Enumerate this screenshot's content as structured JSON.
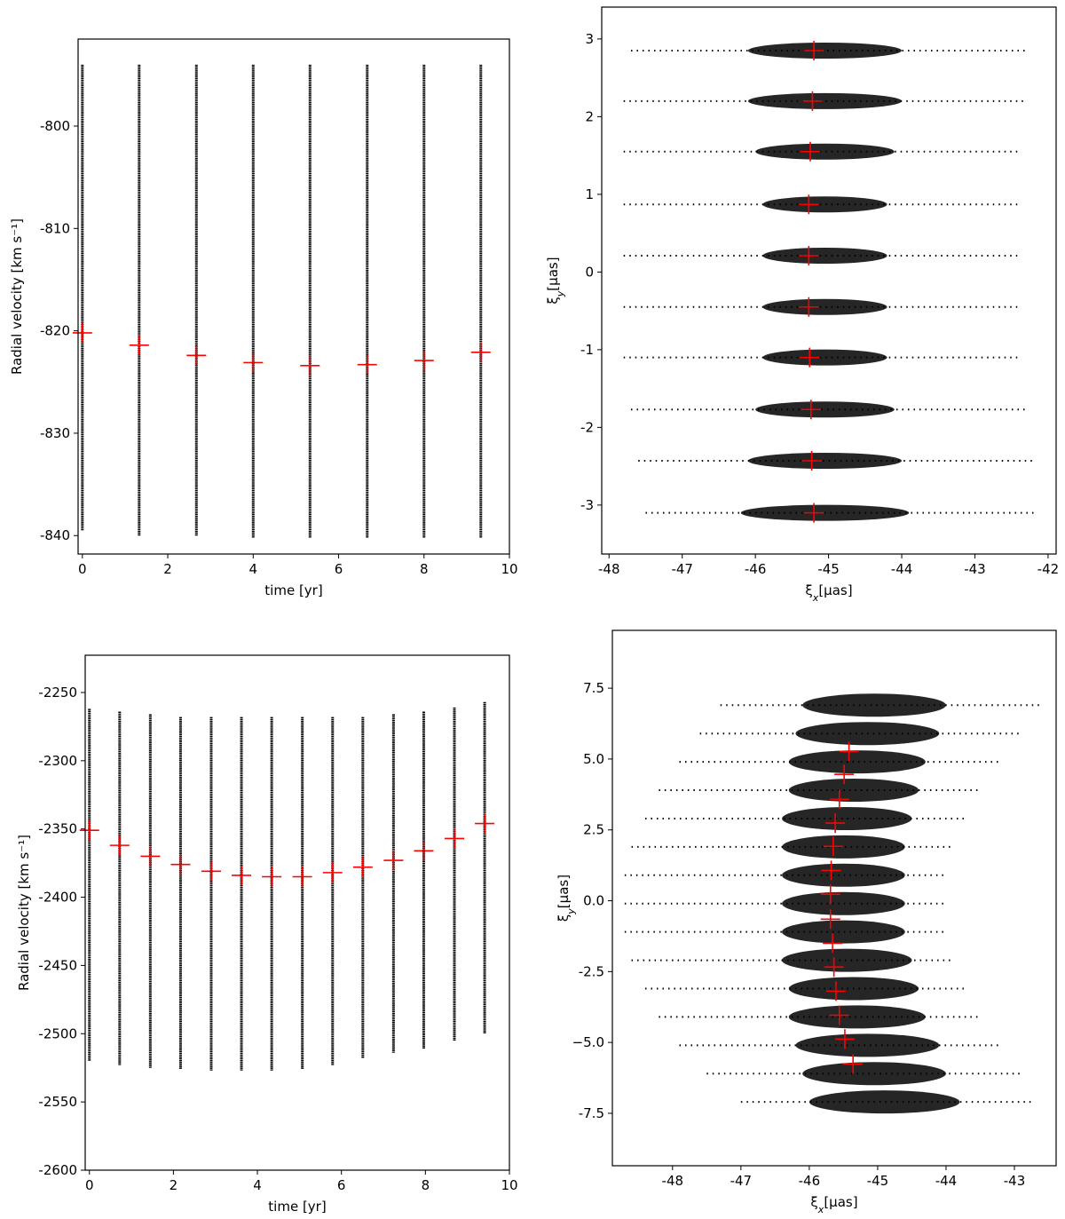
{
  "chart_data": [
    {
      "type": "scatter",
      "xlabel": "time [yr]",
      "ylabel": "Radial velocity [km s⁻¹]",
      "xlim": [
        -0.1,
        10
      ],
      "ylim": [
        -841.8,
        -791.5
      ],
      "xticks": [
        0,
        2,
        4,
        6,
        8,
        10
      ],
      "yticks": [
        -800,
        -810,
        -820,
        -830,
        -840
      ],
      "columns": {
        "color": "#000000",
        "x": [
          0,
          1.33,
          2.67,
          4.0,
          5.33,
          6.67,
          8.0,
          9.33
        ],
        "low": [
          -839.5,
          -840,
          -840,
          -840.2,
          -840.2,
          -840.2,
          -840.2,
          -840.2
        ],
        "high": [
          -794,
          -794,
          -794,
          -794,
          -794,
          -794,
          -794,
          -794
        ]
      },
      "points": {
        "color": "#ff0000",
        "x": [
          0,
          1.33,
          2.67,
          4.0,
          5.33,
          6.67,
          8.0,
          9.33
        ],
        "y": [
          -820.2,
          -821.4,
          -822.4,
          -823.1,
          -823.4,
          -823.3,
          -822.9,
          -822.1
        ]
      }
    },
    {
      "type": "bands",
      "xlabel": "ξx[μas]",
      "ylabel": "ξy[μas]",
      "xlim": [
        -48.1,
        -41.89
      ],
      "ylim": [
        -3.63,
        3.41
      ],
      "xticks": [
        -48,
        -47,
        -46,
        -45,
        -44,
        -43,
        -42
      ],
      "yticks": [
        3,
        2,
        1,
        0,
        -1,
        -2,
        -3
      ],
      "bands": {
        "color": "#000000",
        "y": [
          2.85,
          2.2,
          1.55,
          0.87,
          0.21,
          -0.45,
          -1.1,
          -1.77,
          -2.43,
          -3.1
        ],
        "core_low": [
          -46.1,
          -46.1,
          -46.0,
          -45.9,
          -45.9,
          -45.9,
          -45.9,
          -46.0,
          -46.1,
          -46.2
        ],
        "core_high": [
          -44.0,
          -44.0,
          -44.1,
          -44.2,
          -44.2,
          -44.2,
          -44.2,
          -44.1,
          -44.0,
          -43.9
        ],
        "spread_low": [
          -47.7,
          -47.8,
          -47.8,
          -47.8,
          -47.8,
          -47.8,
          -47.8,
          -47.7,
          -47.6,
          -47.5
        ],
        "spread_high": [
          -42.3,
          -42.3,
          -42.4,
          -42.4,
          -42.4,
          -42.4,
          -42.4,
          -42.3,
          -42.2,
          -42.2
        ]
      },
      "points": {
        "color": "#ff0000",
        "x": [
          -45.2,
          -45.22,
          -45.25,
          -45.27,
          -45.27,
          -45.27,
          -45.26,
          -45.24,
          -45.23,
          -45.2
        ],
        "y": [
          2.85,
          2.2,
          1.55,
          0.87,
          0.21,
          -0.45,
          -1.1,
          -1.77,
          -2.43,
          -3.1
        ]
      }
    },
    {
      "type": "scatter",
      "xlabel": "time [yr]",
      "ylabel": "Radial velocity [km s⁻¹]",
      "xlim": [
        -0.1,
        10
      ],
      "ylim": [
        -2600,
        -2222.7
      ],
      "xticks": [
        0,
        2,
        4,
        6,
        8,
        10
      ],
      "yticks": [
        -2250,
        -2300,
        -2350,
        -2400,
        -2450,
        -2500,
        -2550,
        -2600
      ],
      "columns": {
        "color": "#000000",
        "x": [
          0,
          0.72,
          1.45,
          2.17,
          2.9,
          3.62,
          4.34,
          5.07,
          5.79,
          6.51,
          7.24,
          7.96,
          8.69,
          9.41
        ],
        "low": [
          -2520,
          -2523,
          -2525,
          -2526,
          -2527,
          -2527,
          -2527,
          -2526,
          -2523,
          -2518,
          -2514,
          -2511,
          -2505,
          -2500
        ],
        "high": [
          -2262,
          -2264,
          -2266,
          -2268,
          -2268,
          -2268,
          -2268,
          -2268,
          -2268,
          -2268,
          -2266,
          -2264,
          -2261,
          -2257
        ]
      },
      "points": {
        "color": "#ff0000",
        "x": [
          0,
          0.72,
          1.45,
          2.17,
          2.9,
          3.62,
          4.34,
          5.07,
          5.79,
          6.51,
          7.24,
          7.96,
          8.69,
          9.41
        ],
        "y": [
          -2351,
          -2362,
          -2370,
          -2376,
          -2381,
          -2384,
          -2385,
          -2385,
          -2382,
          -2378,
          -2373,
          -2366,
          -2357,
          -2346
        ]
      }
    },
    {
      "type": "bands",
      "xlabel": "ξx[μas]",
      "ylabel": "ξy[μas]",
      "xlim": [
        -48.88,
        -42.39
      ],
      "ylim": [
        -9.35,
        9.54
      ],
      "xticks": [
        -48,
        -47,
        -46,
        -45,
        -44,
        -43
      ],
      "yticks": [
        7.5,
        {
          "value": 5,
          "label": "5.0"
        },
        2.5,
        {
          "value": 0,
          "label": "0.0"
        },
        -2.5,
        {
          "value": -5,
          "label": "−5.0"
        },
        -7.5
      ],
      "bands": {
        "color": "#000000",
        "y": [
          6.9,
          5.9,
          4.9,
          3.9,
          2.9,
          1.9,
          0.9,
          -0.1,
          -1.1,
          -2.1,
          -3.1,
          -4.1,
          -5.1,
          -6.1,
          -7.1
        ],
        "core_low": [
          -46.1,
          -46.2,
          -46.3,
          -46.3,
          -46.4,
          -46.4,
          -46.4,
          -46.4,
          -46.4,
          -46.4,
          -46.3,
          -46.3,
          -46.2,
          -46.1,
          -46.0
        ],
        "core_high": [
          -44.0,
          -44.1,
          -44.3,
          -44.4,
          -44.5,
          -44.6,
          -44.6,
          -44.6,
          -44.6,
          -44.5,
          -44.4,
          -44.3,
          -44.1,
          -44.0,
          -43.8
        ],
        "spread_low": [
          -47.3,
          -47.6,
          -47.9,
          -48.2,
          -48.4,
          -48.6,
          -48.7,
          -48.7,
          -48.7,
          -48.6,
          -48.4,
          -48.2,
          -47.9,
          -47.5,
          -47.0
        ],
        "spread_high": [
          -42.6,
          -42.9,
          -43.2,
          -43.5,
          -43.7,
          -43.9,
          -44.0,
          -44.0,
          -44.0,
          -43.9,
          -43.7,
          -43.5,
          -43.2,
          -42.9,
          -42.7
        ]
      },
      "points": {
        "color": "#ff0000",
        "x": [
          -45.42,
          -45.49,
          -45.56,
          -45.62,
          -45.65,
          -45.68,
          -45.69,
          -45.69,
          -45.66,
          -45.64,
          -45.61,
          -45.56,
          -45.48,
          -45.36
        ],
        "y": [
          5.27,
          4.46,
          3.58,
          2.74,
          1.92,
          1.07,
          0.23,
          -0.65,
          -1.5,
          -2.34,
          -3.19,
          -4.04,
          -4.88,
          -5.76
        ]
      }
    }
  ]
}
